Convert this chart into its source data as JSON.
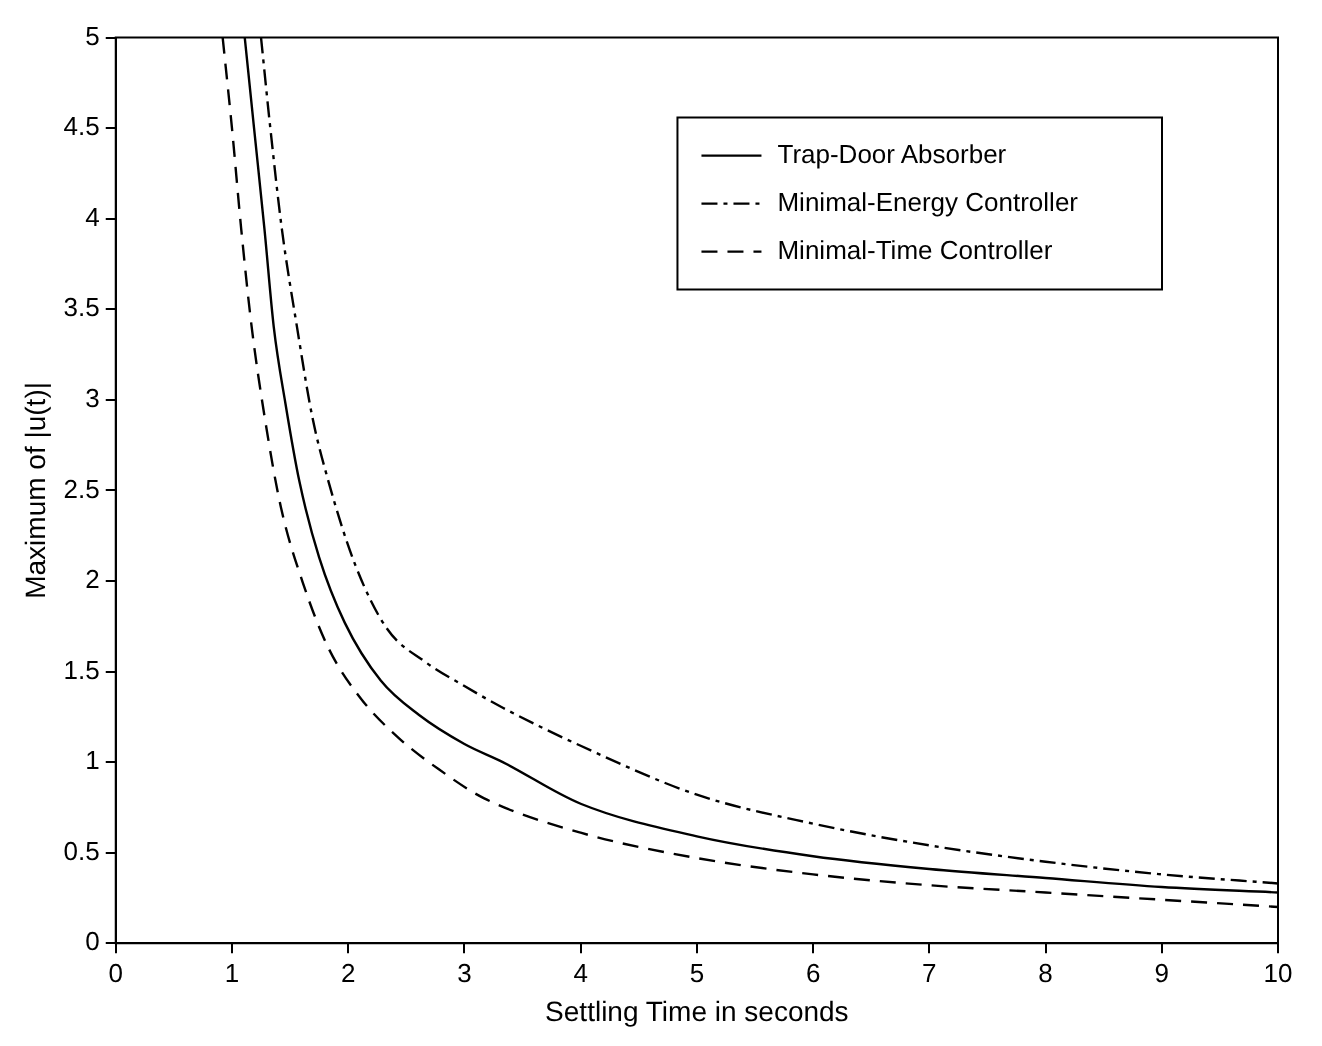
{
  "chart_data": {
    "type": "line",
    "xlabel": "Settling Time in seconds",
    "ylabel": "Maximum of |u(t)|",
    "xlim": [
      0,
      10
    ],
    "xticks": [
      0,
      1,
      2,
      3,
      4,
      5,
      6,
      7,
      8,
      9,
      10
    ],
    "ylim": [
      0,
      5
    ],
    "yticks": [
      0,
      0.5,
      1,
      1.5,
      2,
      2.5,
      3,
      3.5,
      4,
      4.5,
      5
    ],
    "grid": false,
    "legend": "top right",
    "marker": "none",
    "series": [
      {
        "name": "Trap-Door Absorber",
        "color": "#000000",
        "line_style": "solid",
        "x": [
          1.11,
          1.19,
          1.28,
          1.36,
          1.46,
          1.58,
          1.75,
          1.97,
          2.28,
          2.61,
          3.0,
          3.33,
          4,
          5,
          6,
          7,
          8,
          9,
          10
        ],
        "values": [
          5,
          4.5,
          3.94,
          3.4,
          2.98,
          2.55,
          2.13,
          1.77,
          1.45,
          1.26,
          1.1,
          1.0,
          0.77,
          0.59,
          0.48,
          0.41,
          0.36,
          0.31,
          0.28
        ]
      },
      {
        "name": "Minimal-Energy Controller",
        "color": "#000000",
        "line_style": "dashdot",
        "x": [
          1.25,
          1.33,
          1.43,
          1.56,
          1.69,
          1.83,
          2.06,
          2.33,
          2.67,
          3.0,
          3.33,
          4,
          5,
          6,
          7,
          8,
          9,
          10
        ],
        "values": [
          5,
          4.5,
          3.94,
          3.4,
          2.91,
          2.55,
          2.09,
          1.74,
          1.55,
          1.42,
          1.3,
          1.09,
          0.82,
          0.66,
          0.54,
          0.45,
          0.38,
          0.33
        ]
      },
      {
        "name": "Minimal-Time Controller",
        "color": "#000000",
        "line_style": "dashed",
        "x": [
          0.92,
          1.0,
          1.08,
          1.17,
          1.28,
          1.42,
          1.61,
          1.83,
          2.11,
          2.44,
          2.78,
          3.17,
          4,
          5,
          6,
          7,
          8,
          9,
          10
        ],
        "values": [
          5,
          4.5,
          3.94,
          3.4,
          2.91,
          2.41,
          1.99,
          1.63,
          1.35,
          1.13,
          0.96,
          0.8,
          0.61,
          0.47,
          0.38,
          0.32,
          0.28,
          0.24,
          0.2
        ]
      }
    ]
  }
}
